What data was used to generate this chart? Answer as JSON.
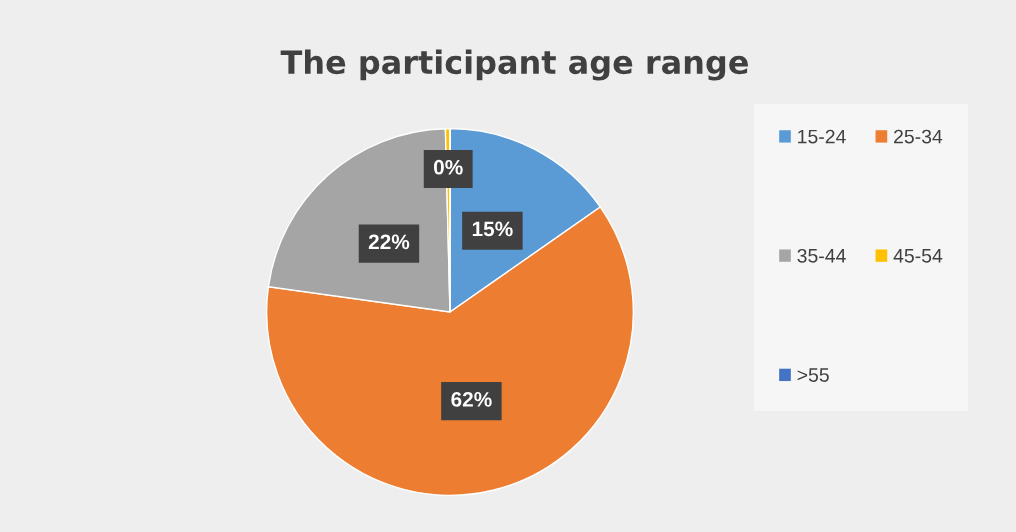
{
  "chart_data": {
    "type": "pie",
    "title": "The participant age range",
    "categories": [
      "15-24",
      "25-34",
      "35-44",
      "45-54",
      ">55"
    ],
    "values": [
      15.3,
      61.9,
      22.4,
      0.4,
      0
    ],
    "value_labels": [
      "15%",
      "62%",
      "22%",
      "0%",
      null
    ],
    "colors": [
      "#5b9bd5",
      "#ed7d31",
      "#a5a5a5",
      "#ffc000",
      "#4472c4"
    ],
    "legend": "right"
  }
}
